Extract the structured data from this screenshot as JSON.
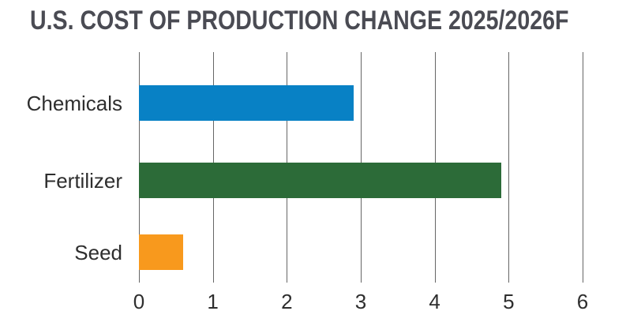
{
  "chart_data": {
    "type": "bar",
    "orientation": "horizontal",
    "title": "U.S. COST OF PRODUCTION CHANGE 2025/2026F",
    "categories": [
      "Chemicals",
      "Fertilizer",
      "Seed"
    ],
    "values": [
      2.9,
      4.9,
      0.6
    ],
    "bar_colors": [
      "#0881c5",
      "#2c6b38",
      "#f8991d"
    ],
    "x_ticks": [
      "0",
      "1",
      "2",
      "3",
      "4",
      "5",
      "6"
    ],
    "xlim": [
      0,
      6
    ],
    "xlabel": "",
    "ylabel": "",
    "grid": "vertical",
    "legend_position": "none"
  },
  "colors": {
    "title_text": "#4a4b53",
    "axis_text": "#2e2e2e",
    "gridline": "#666666",
    "background": "#ffffff"
  }
}
